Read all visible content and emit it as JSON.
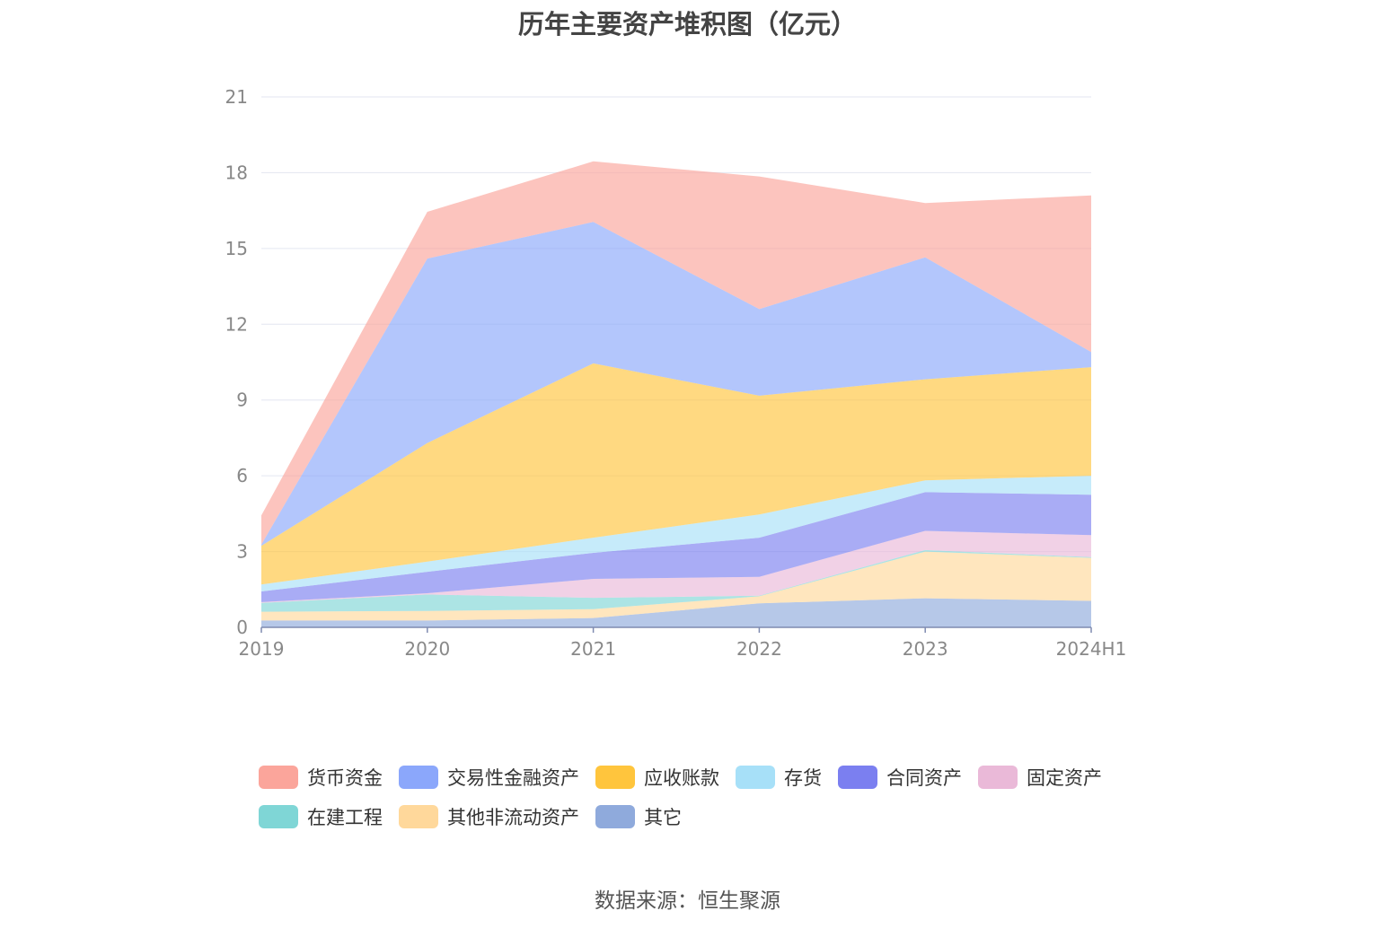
{
  "chart_data": {
    "type": "area",
    "stacked": true,
    "title": "历年主要资产堆积图（亿元）",
    "x": [
      "2019",
      "2020",
      "2021",
      "2022",
      "2023",
      "2024H1"
    ],
    "ylim": [
      0,
      21
    ],
    "yticks": [
      "0",
      "3",
      "6",
      "9",
      "12",
      "15",
      "18",
      "21"
    ],
    "grid": true,
    "legend_position": "bottom",
    "series": [
      {
        "name": "其它",
        "color": "#8faadc",
        "values": [
          0.27,
          0.27,
          0.37,
          0.95,
          1.15,
          1.05
        ]
      },
      {
        "name": "其他非流动资产",
        "color": "#ffd89b",
        "values": [
          0.35,
          0.38,
          0.35,
          0.28,
          1.85,
          1.7
        ]
      },
      {
        "name": "在建工程",
        "color": "#7fd6d6",
        "values": [
          0.35,
          0.65,
          0.45,
          0.02,
          0.06,
          0.03
        ]
      },
      {
        "name": "固定资产",
        "color": "#eab9d8",
        "values": [
          0.03,
          0.05,
          0.75,
          0.75,
          0.76,
          0.87
        ]
      },
      {
        "name": "合同资产",
        "color": "#7b7ff0",
        "values": [
          0.42,
          0.85,
          1.03,
          1.55,
          1.53,
          1.6
        ]
      },
      {
        "name": "存货",
        "color": "#a7e0f8",
        "values": [
          0.28,
          0.4,
          0.6,
          0.92,
          0.47,
          0.75
        ]
      },
      {
        "name": "应收账款",
        "color": "#ffc53d",
        "values": [
          1.53,
          4.7,
          6.9,
          4.7,
          4.0,
          4.3
        ]
      },
      {
        "name": "交易性金融资产",
        "color": "#8ba7fb",
        "values": [
          0.05,
          7.3,
          5.6,
          3.43,
          4.83,
          0.6
        ]
      },
      {
        "name": "货币资金",
        "color": "#fba59b",
        "values": [
          1.15,
          1.85,
          2.4,
          5.25,
          2.15,
          6.2
        ]
      }
    ]
  },
  "legend_order": [
    "货币资金",
    "交易性金融资产",
    "应收账款",
    "存货",
    "合同资产",
    "固定资产",
    "在建工程",
    "其他非流动资产",
    "其它"
  ],
  "source_note": "数据来源：恒生聚源"
}
